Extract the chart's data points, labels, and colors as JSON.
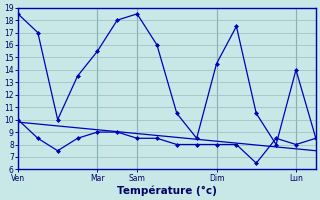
{
  "bg_color": "#c8e8e8",
  "line_color": "#0000bb",
  "grid_color": "#99bbbb",
  "grid_minor_color": "#bbdddd",
  "xlabel": "Température (°c)",
  "ylim": [
    6,
    19
  ],
  "yticks": [
    6,
    7,
    8,
    9,
    10,
    11,
    12,
    13,
    14,
    15,
    16,
    17,
    18,
    19
  ],
  "xlim": [
    0,
    15
  ],
  "day_positions": [
    0,
    4,
    6,
    10,
    14
  ],
  "day_labels": [
    "Ven",
    "Mar",
    "Sam",
    "Dim",
    "Lun"
  ],
  "line1_x": [
    0,
    1,
    2,
    3,
    4,
    5,
    6,
    7,
    8,
    9,
    10,
    11,
    12,
    13,
    14,
    15
  ],
  "line1_y": [
    18.5,
    17.0,
    10.0,
    13.5,
    15.5,
    18.0,
    18.5,
    16.0,
    10.5,
    8.5,
    14.5,
    17.5,
    10.5,
    8.0,
    14.0,
    8.5
  ],
  "line2_x": [
    0,
    1,
    2,
    3,
    4,
    5,
    6,
    7,
    8,
    9,
    10,
    11,
    12,
    13,
    14,
    15
  ],
  "line2_y": [
    10.0,
    8.5,
    7.5,
    8.5,
    9.0,
    9.0,
    8.5,
    8.5,
    8.0,
    8.0,
    8.0,
    8.0,
    6.5,
    8.5,
    8.0,
    8.5
  ],
  "line3_x": [
    0,
    15
  ],
  "line3_y": [
    9.8,
    7.5
  ],
  "tick_fontsize": 5.5,
  "xlabel_fontsize": 7.5
}
